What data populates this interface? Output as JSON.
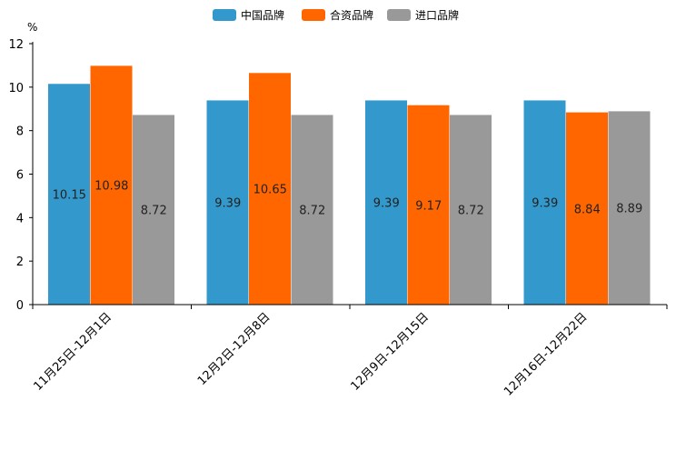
{
  "chart_data": {
    "type": "bar",
    "title": "",
    "ylabel": "%",
    "xlabel": "",
    "ylim": [
      0,
      12
    ],
    "yticks": [
      0,
      2,
      4,
      6,
      8,
      10,
      12
    ],
    "categories": [
      "11月25日-12月1日",
      "12月2日-12月8日",
      "12月9日-12月15日",
      "12月16日-12月22日"
    ],
    "series": [
      {
        "name": "中国品牌",
        "color": "#3399CC",
        "values": [
          10.15,
          9.39,
          9.39,
          9.39
        ],
        "labels": [
          "10.15",
          "9.39",
          "9.39",
          "9.39"
        ]
      },
      {
        "name": "合资品牌",
        "color": "#FF6600",
        "values": [
          10.98,
          10.65,
          9.17,
          8.84
        ],
        "labels": [
          "10.98",
          "10.65",
          "9.17",
          "8.84"
        ]
      },
      {
        "name": "进口品牌",
        "color": "#999999",
        "values": [
          8.72,
          8.72,
          8.72,
          8.89
        ],
        "labels": [
          "8.72",
          "8.72",
          "8.72",
          "8.89"
        ]
      }
    ],
    "legend_position": "top-center",
    "grid": false
  }
}
